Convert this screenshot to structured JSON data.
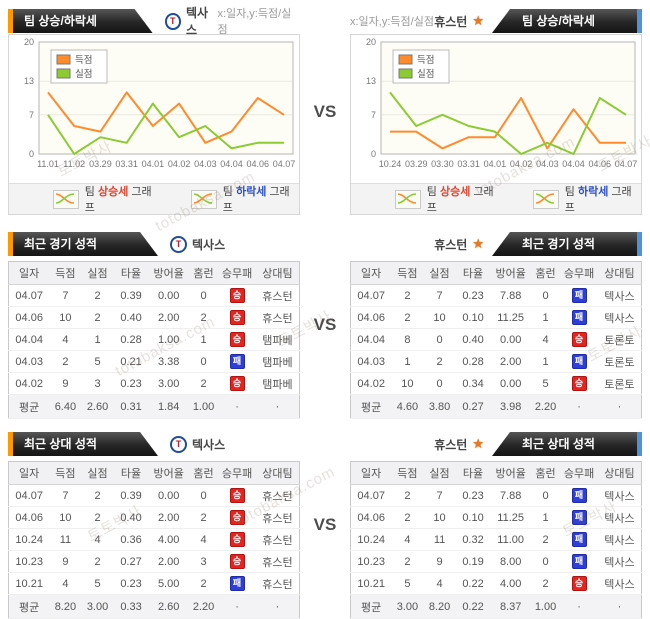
{
  "vs_label": "VS",
  "watermark": {
    "name_text": "토토박사",
    "domain_text": "totobaksa.com"
  },
  "colors": {
    "score": "#ff8b2d",
    "concede": "#8ccb31",
    "win_badge": "#e8231f",
    "loss_badge": "#2f3ed6",
    "tab_accent_left": "#ff9900",
    "tab_accent_right": "#4f93d6"
  },
  "teams": {
    "left": {
      "name": "텍사스",
      "logo_letter": "T"
    },
    "right": {
      "name": "휴스턴",
      "logo_glyph": "★"
    }
  },
  "chart_section": {
    "tab_title": "팀 상승/하락세",
    "axis_note": "x:일자,y:득점/실점",
    "legend_rise": {
      "prefix": "팀 ",
      "word": "상승세",
      "suffix": " 그래프"
    },
    "legend_fall": {
      "prefix": "팀 ",
      "word": "하락세",
      "suffix": " 그래프"
    }
  },
  "chart_data": [
    {
      "type": "line",
      "team": "텍사스",
      "ylim": [
        0,
        20
      ],
      "y_ticks": [
        0,
        7,
        13,
        20
      ],
      "x": [
        "11.01",
        "11.02",
        "03.29",
        "03.31",
        "04.01",
        "04.02",
        "04.03",
        "04.04",
        "04.06",
        "04.07"
      ],
      "series": [
        {
          "name": "득점",
          "values": [
            11,
            5,
            4,
            11,
            5,
            9,
            2,
            4,
            10,
            7
          ]
        },
        {
          "name": "실점",
          "values": [
            7,
            0,
            3,
            2,
            9,
            3,
            5,
            1,
            2,
            2
          ]
        }
      ],
      "legend_position": "top-left",
      "grid": true
    },
    {
      "type": "line",
      "team": "휴스턴",
      "ylim": [
        0,
        20
      ],
      "y_ticks": [
        0,
        7,
        13,
        20
      ],
      "x": [
        "10.24",
        "03.29",
        "03.30",
        "03.31",
        "04.01",
        "04.02",
        "04.03",
        "04.04",
        "04.06",
        "04.07"
      ],
      "series": [
        {
          "name": "득점",
          "values": [
            4,
            4,
            1,
            3,
            3,
            10,
            1,
            8,
            2,
            2
          ]
        },
        {
          "name": "실점",
          "values": [
            11,
            5,
            7,
            5,
            4,
            0,
            2,
            0,
            10,
            7
          ]
        }
      ],
      "legend_position": "top-left",
      "grid": true
    }
  ],
  "recent_games": {
    "tab_title": "최근 경기 성적",
    "columns": [
      "일자",
      "득점",
      "실점",
      "타율",
      "방어율",
      "홈런",
      "승무패",
      "상대팀"
    ],
    "left": {
      "rows": [
        [
          "04.07",
          "7",
          "2",
          "0.39",
          "0.00",
          "0",
          "승",
          "휴스턴"
        ],
        [
          "04.06",
          "10",
          "2",
          "0.40",
          "2.00",
          "2",
          "승",
          "휴스턴"
        ],
        [
          "04.04",
          "4",
          "1",
          "0.28",
          "1.00",
          "1",
          "승",
          "탬파베"
        ],
        [
          "04.03",
          "2",
          "5",
          "0.21",
          "3.38",
          "0",
          "패",
          "탬파베"
        ],
        [
          "04.02",
          "9",
          "3",
          "0.23",
          "3.00",
          "2",
          "승",
          "탬파베"
        ]
      ],
      "avg": [
        "평균",
        "6.40",
        "2.60",
        "0.31",
        "1.84",
        "1.00",
        "·",
        "·"
      ]
    },
    "right": {
      "rows": [
        [
          "04.07",
          "2",
          "7",
          "0.23",
          "7.88",
          "0",
          "패",
          "텍사스"
        ],
        [
          "04.06",
          "2",
          "10",
          "0.10",
          "11.25",
          "1",
          "패",
          "텍사스"
        ],
        [
          "04.04",
          "8",
          "0",
          "0.40",
          "0.00",
          "4",
          "승",
          "토론토"
        ],
        [
          "04.03",
          "1",
          "2",
          "0.28",
          "2.00",
          "1",
          "패",
          "토론토"
        ],
        [
          "04.02",
          "10",
          "0",
          "0.34",
          "0.00",
          "5",
          "승",
          "토론토"
        ]
      ],
      "avg": [
        "평균",
        "4.60",
        "3.80",
        "0.27",
        "3.98",
        "2.20",
        "·",
        "·"
      ]
    }
  },
  "recent_vs": {
    "tab_title": "최근 상대 성적",
    "columns": [
      "일자",
      "득점",
      "실점",
      "타율",
      "방어율",
      "홈런",
      "승무패",
      "상대팀"
    ],
    "left": {
      "rows": [
        [
          "04.07",
          "7",
          "2",
          "0.39",
          "0.00",
          "0",
          "승",
          "휴스턴"
        ],
        [
          "04.06",
          "10",
          "2",
          "0.40",
          "2.00",
          "2",
          "승",
          "휴스턴"
        ],
        [
          "10.24",
          "11",
          "4",
          "0.36",
          "4.00",
          "4",
          "승",
          "휴스턴"
        ],
        [
          "10.23",
          "9",
          "2",
          "0.27",
          "2.00",
          "3",
          "승",
          "휴스턴"
        ],
        [
          "10.21",
          "4",
          "5",
          "0.23",
          "5.00",
          "2",
          "패",
          "휴스턴"
        ]
      ],
      "avg": [
        "평균",
        "8.20",
        "3.00",
        "0.33",
        "2.60",
        "2.20",
        "·",
        "·"
      ]
    },
    "right": {
      "rows": [
        [
          "04.07",
          "2",
          "7",
          "0.23",
          "7.88",
          "0",
          "패",
          "텍사스"
        ],
        [
          "04.06",
          "2",
          "10",
          "0.10",
          "11.25",
          "1",
          "패",
          "텍사스"
        ],
        [
          "10.24",
          "4",
          "11",
          "0.32",
          "11.00",
          "2",
          "패",
          "텍사스"
        ],
        [
          "10.23",
          "2",
          "9",
          "0.19",
          "8.00",
          "0",
          "패",
          "텍사스"
        ],
        [
          "10.21",
          "5",
          "4",
          "0.22",
          "4.00",
          "2",
          "승",
          "텍사스"
        ]
      ],
      "avg": [
        "평균",
        "3.00",
        "8.20",
        "0.22",
        "8.37",
        "1.00",
        "·",
        "·"
      ]
    }
  }
}
